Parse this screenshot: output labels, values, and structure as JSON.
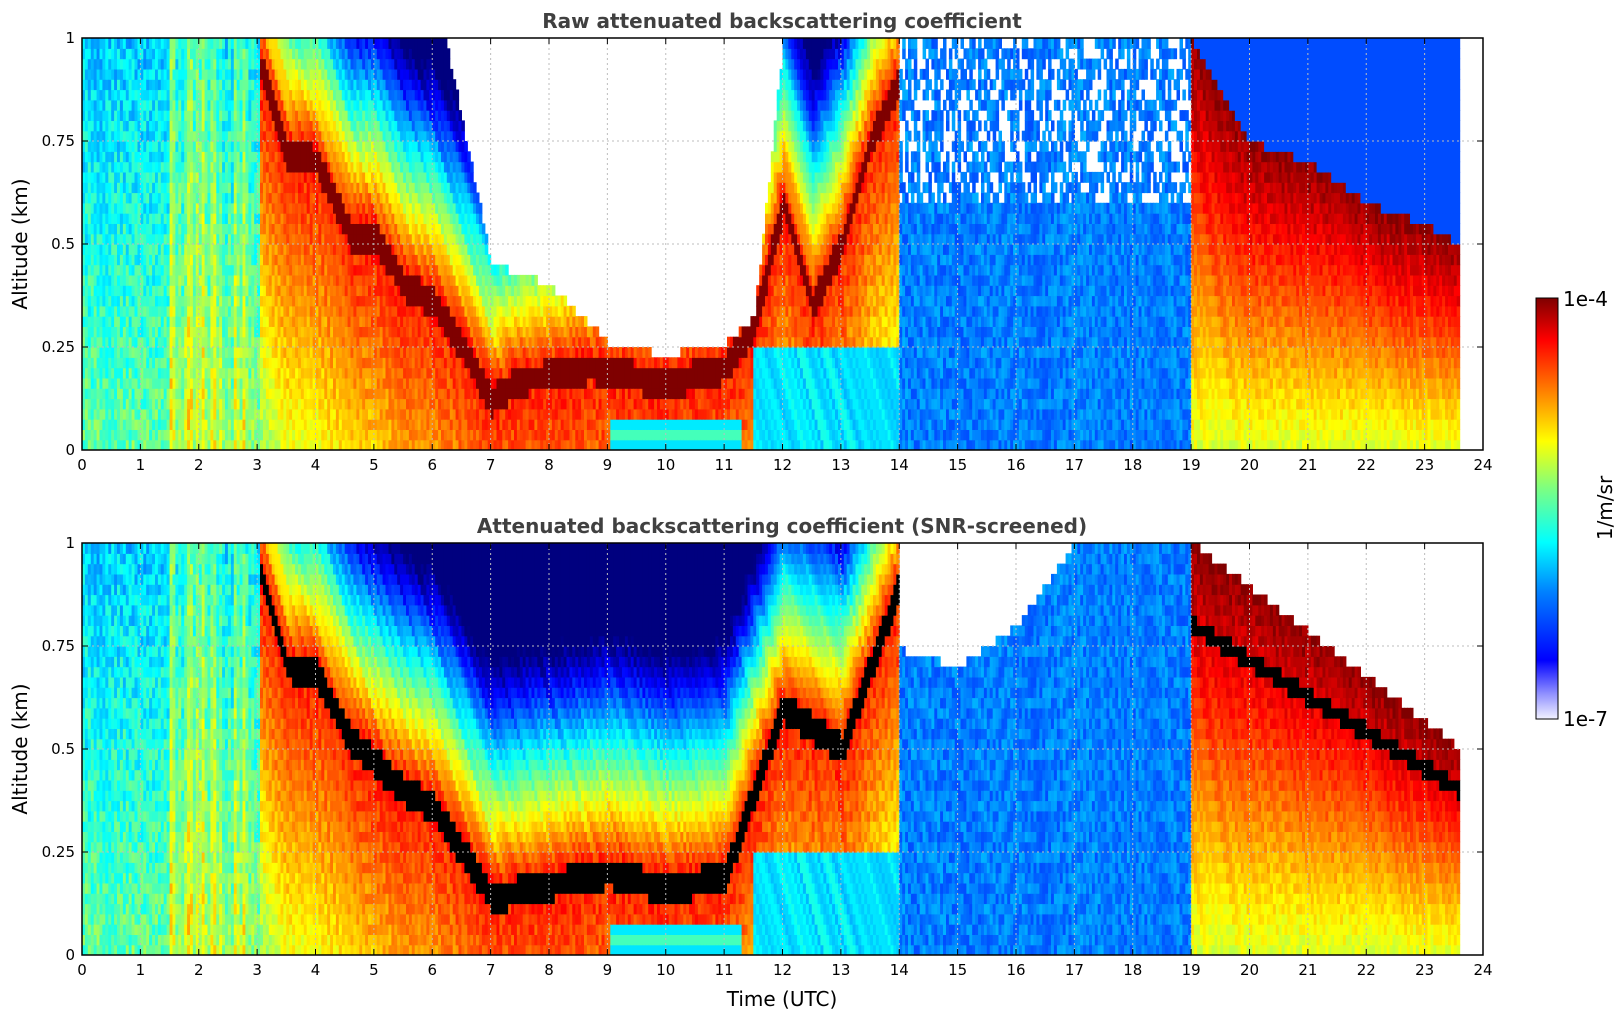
{
  "colors": {
    "jet_colormap": [
      "#00007f",
      "#0000ff",
      "#007fff",
      "#00ffff",
      "#7fff7f",
      "#ffff00",
      "#ff7f00",
      "#ff0000",
      "#7f0000"
    ],
    "screened_overflow": "#000000",
    "no_data": "#ffffff",
    "title_text": "#404040"
  },
  "chart_data": [
    {
      "type": "heatmap",
      "title": "Raw attenuated backscattering coefficient",
      "xlabel": "",
      "ylabel": "Altitude (km)",
      "xlim": [
        0,
        24
      ],
      "ylim": [
        0,
        1
      ],
      "xticks": [
        "0",
        "1",
        "2",
        "3",
        "4",
        "5",
        "6",
        "7",
        "8",
        "9",
        "10",
        "11",
        "12",
        "13",
        "14",
        "15",
        "16",
        "17",
        "18",
        "19",
        "20",
        "21",
        "22",
        "23",
        "24"
      ],
      "yticks": [
        "0",
        "0.25",
        "0.5",
        "0.75",
        "1"
      ],
      "grid": true,
      "color_scale": "log",
      "data_end_time": 23.6,
      "features": [
        {
          "name": "high-backscatter layer",
          "points": [
            [
              3.0,
              0.95
            ],
            [
              3.5,
              0.72
            ],
            [
              4.0,
              0.7
            ],
            [
              4.6,
              0.52
            ],
            [
              5.0,
              0.52
            ],
            [
              5.5,
              0.4
            ],
            [
              6.0,
              0.36
            ],
            [
              6.5,
              0.25
            ],
            [
              7.0,
              0.12
            ],
            [
              7.5,
              0.17
            ],
            [
              8.0,
              0.18
            ],
            [
              8.7,
              0.2
            ],
            [
              9.0,
              0.19
            ],
            [
              10.0,
              0.16
            ],
            [
              11.0,
              0.2
            ],
            [
              11.5,
              0.3
            ],
            [
              12.0,
              0.6
            ],
            [
              12.5,
              0.35
            ],
            [
              13.0,
              0.5
            ],
            [
              13.5,
              0.75
            ],
            [
              14.0,
              0.9
            ]
          ]
        },
        {
          "name": "no-data gap top",
          "points": [
            [
              6.2,
              1.0
            ],
            [
              7.0,
              0.45
            ],
            [
              8.0,
              0.4
            ],
            [
              9.0,
              0.26
            ],
            [
              10.0,
              0.23
            ],
            [
              11.0,
              0.26
            ],
            [
              11.5,
              0.32
            ],
            [
              12.0,
              1.0
            ]
          ]
        },
        {
          "name": "low cloud top 20-23.6 UTC",
          "points": [
            [
              19.0,
              1.0
            ],
            [
              20.0,
              0.75
            ],
            [
              21.0,
              0.7
            ],
            [
              22.0,
              0.6
            ],
            [
              23.0,
              0.55
            ],
            [
              23.6,
              0.5
            ]
          ]
        }
      ]
    },
    {
      "type": "heatmap",
      "title": "Attenuated backscattering coefficient (SNR-screened)",
      "xlabel": "Time (UTC)",
      "ylabel": "Altitude (km)",
      "xlim": [
        0,
        24
      ],
      "ylim": [
        0,
        1
      ],
      "xticks": [
        "0",
        "1",
        "2",
        "3",
        "4",
        "5",
        "6",
        "7",
        "8",
        "9",
        "10",
        "11",
        "12",
        "13",
        "14",
        "15",
        "16",
        "17",
        "18",
        "19",
        "20",
        "21",
        "22",
        "23",
        "24"
      ],
      "yticks": [
        "0",
        "0.25",
        "0.5",
        "0.75",
        "1"
      ],
      "grid": true,
      "color_scale": "log",
      "data_end_time": 23.6,
      "features": [
        {
          "name": "saturated layer (black)",
          "points": [
            [
              3.0,
              0.95
            ],
            [
              3.5,
              0.7
            ],
            [
              4.0,
              0.68
            ],
            [
              4.6,
              0.52
            ],
            [
              5.5,
              0.4
            ],
            [
              6.0,
              0.36
            ],
            [
              7.0,
              0.14
            ],
            [
              8.0,
              0.17
            ],
            [
              9.0,
              0.2
            ],
            [
              10.0,
              0.16
            ],
            [
              11.0,
              0.19
            ],
            [
              12.0,
              0.6
            ],
            [
              13.0,
              0.5
            ],
            [
              14.0,
              0.9
            ]
          ]
        },
        {
          "name": "screened-out region",
          "points": [
            [
              13.8,
              0.75
            ],
            [
              15.0,
              0.7
            ],
            [
              16.0,
              0.8
            ],
            [
              17.0,
              1.0
            ]
          ]
        }
      ]
    }
  ],
  "colorbar": {
    "label": "1/m/sr",
    "max_label": "1e-4",
    "min_label": "1e-7",
    "min": 1e-07,
    "max": 0.0001,
    "scale": "log"
  }
}
